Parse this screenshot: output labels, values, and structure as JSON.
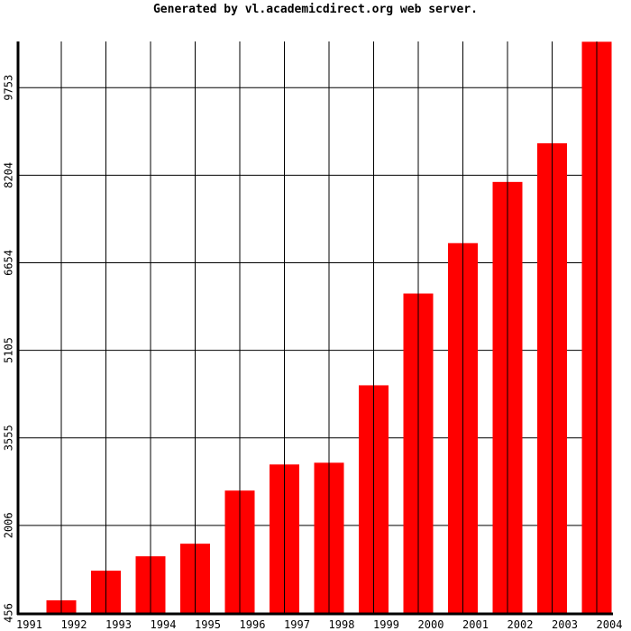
{
  "chart_data": {
    "type": "bar",
    "title": "Generated by vl.academicdirect.org web server.",
    "categories": [
      "1991",
      "1992",
      "1993",
      "1994",
      "1995",
      "1996",
      "1997",
      "1998",
      "1999",
      "2000",
      "2001",
      "2002",
      "2003",
      "2004"
    ],
    "values": [
      null,
      680,
      1204,
      1459,
      1682,
      2622,
      3084,
      3115,
      4485,
      6110,
      7001,
      8084,
      8769,
      10565
    ],
    "color": "#ff0000",
    "ylim": [
      456,
      10570
    ],
    "yticks": [
      456,
      2006,
      3555,
      5105,
      6654,
      8204,
      9753
    ],
    "grid": true
  }
}
